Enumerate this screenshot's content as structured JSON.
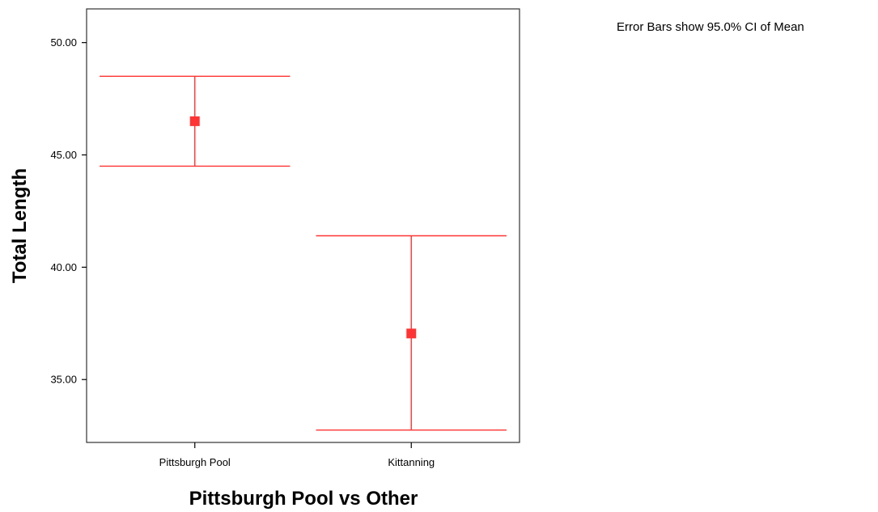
{
  "chart_data": {
    "type": "errorbar",
    "categories": [
      "Pittsburgh Pool",
      "Kittanning"
    ],
    "series": [
      {
        "color": "#ff3333",
        "mean": [
          46.5,
          37.05
        ],
        "ci_lower": [
          44.5,
          32.75
        ],
        "ci_upper": [
          48.5,
          41.4
        ]
      }
    ],
    "ylim": [
      32.2,
      51.5
    ],
    "yticks": [
      35,
      40,
      45,
      50
    ],
    "ytick_labels": [
      "35.00",
      "40.00",
      "45.00",
      "50.00"
    ],
    "xlabel": "Pittsburgh Pool vs Other",
    "ylabel": "Total Length",
    "annotation": "Error Bars show 95.0% CI of Mean",
    "grid": false
  }
}
